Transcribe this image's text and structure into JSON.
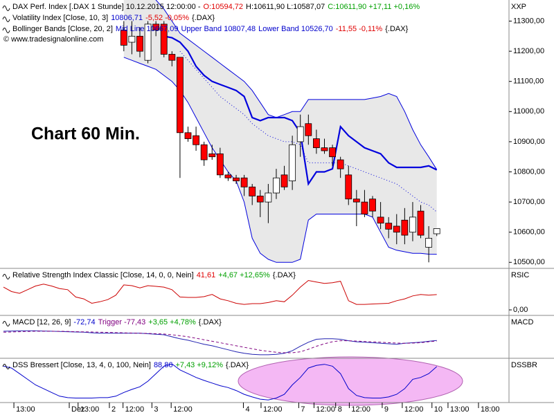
{
  "chart_data": [
    {
      "type": "candlestick",
      "legend_rows": [
        [
          {
            "text": "DAX Perf. Index [.DAX 1 Stunde] 10.12.2015 12:00:00 -",
            "color": "#000000"
          },
          {
            "text": "O:10594,72",
            "color": "#e00000"
          },
          {
            "text": "H:10611,90 L:10587,07",
            "color": "#000000"
          },
          {
            "text": "C:10611,90 +17,11 +0,16%",
            "color": "#00a000"
          }
        ],
        [
          {
            "text": "Volatility Index [Close, 10, 3]",
            "color": "#000000"
          },
          {
            "text": "10806,71",
            "color": "#0000cc"
          },
          {
            "text": "-5,52 -0,05%",
            "color": "#e00000"
          },
          {
            "text": "{.DAX}",
            "color": "#000000"
          }
        ],
        [
          {
            "text": "Bollinger Bands [Close, 20, 2]",
            "color": "#000000"
          },
          {
            "text": "Mid Line 10667,09",
            "color": "#0000cc"
          },
          {
            "text": "Upper Band 10807,48",
            "color": "#0000cc"
          },
          {
            "text": "Lower Band 10526,70",
            "color": "#0000cc"
          },
          {
            "text": "-11,55 -0,11%",
            "color": "#e00000"
          },
          {
            "text": "{.DAX}",
            "color": "#000000"
          }
        ]
      ],
      "credit": "© www.tradesignalonline.com",
      "annotation": "Chart 60 Min.",
      "axis_label": "XXP",
      "up_color": "#ffffff",
      "down_color": "#ff0000",
      "band_fill": "#e8e8e8",
      "x": [
        15,
        16,
        17,
        18,
        19,
        20,
        21,
        22,
        23,
        24,
        25,
        26,
        27,
        28,
        29,
        30,
        31,
        32,
        33,
        34,
        35,
        36,
        37,
        38,
        39,
        40,
        41,
        42,
        43,
        44,
        45,
        46,
        47,
        48,
        49,
        50,
        51,
        52,
        53,
        54
      ],
      "open": [
        11270,
        11230,
        11250,
        11170,
        11290,
        11290,
        11190,
        11180,
        10930,
        10920,
        10890,
        10860,
        10860,
        10790,
        10780,
        10780,
        10750,
        10720,
        10700,
        10730,
        10790,
        10770,
        10900,
        10960,
        10910,
        10880,
        10880,
        10840,
        10790,
        10710,
        10700,
        10710,
        10650,
        10630,
        10620,
        10640,
        10600,
        10670,
        10550,
        10594.72
      ],
      "high": [
        11300,
        11300,
        11280,
        11300,
        11300,
        11300,
        11200,
        11180,
        10950,
        10950,
        10900,
        10890,
        10880,
        10800,
        10790,
        10790,
        10760,
        10740,
        10760,
        10810,
        10820,
        10920,
        10990,
        10990,
        10940,
        10910,
        10890,
        10850,
        10820,
        10740,
        10740,
        10720,
        10700,
        10650,
        10660,
        10680,
        10700,
        10690,
        10620,
        10611.9
      ],
      "low": [
        11200,
        11190,
        11180,
        11160,
        11250,
        11180,
        11150,
        10780,
        10900,
        10870,
        10820,
        10840,
        10780,
        10770,
        10760,
        10720,
        10690,
        10650,
        10630,
        10710,
        10740,
        10740,
        10850,
        10890,
        10860,
        10860,
        10820,
        10780,
        10690,
        10620,
        10650,
        10650,
        10610,
        10580,
        10560,
        10560,
        10570,
        10580,
        10500,
        10587.07
      ],
      "close": [
        11220,
        11250,
        11200,
        11290,
        11270,
        11190,
        11170,
        10930,
        10910,
        10890,
        10840,
        10850,
        10790,
        10780,
        10770,
        10750,
        10720,
        10700,
        10730,
        10780,
        10750,
        10890,
        10950,
        10920,
        10880,
        10870,
        10850,
        10810,
        10710,
        10700,
        10660,
        10670,
        10630,
        10610,
        10600,
        10590,
        10650,
        10590,
        10580,
        10611.9
      ],
      "series": [
        {
          "color": "#0000dd",
          "width": 2.2,
          "values": [
            null,
            null,
            null,
            null,
            null,
            11250,
            11245,
            11230,
            11200,
            11150,
            11120,
            11100,
            11090,
            11080,
            11070,
            11050,
            10980,
            10970,
            10980,
            10980,
            10980,
            10970,
            10930,
            10760,
            10800,
            10800,
            10810,
            10950,
            10920,
            10900,
            10880,
            10870,
            10860,
            10830,
            10815,
            10815,
            10815,
            10815,
            10820,
            10806.71
          ]
        },
        {
          "color": "#0000dd",
          "width": 1,
          "dash": "1 3",
          "values": [
            null,
            null,
            null,
            null,
            null,
            null,
            null,
            11200,
            11170,
            11140,
            11110,
            11080,
            11050,
            11030,
            11010,
            10990,
            10960,
            10940,
            10920,
            10910,
            10900,
            10900,
            10890,
            10830,
            10830,
            10830,
            10830,
            10830,
            10820,
            10810,
            10800,
            10790,
            10780,
            10770,
            10760,
            10740,
            10720,
            10700,
            10690,
            10667.09
          ]
        },
        {
          "color": "#0000dd",
          "width": 1,
          "values": [
            11420,
            11410,
            11400,
            11390,
            11370,
            11340,
            11300,
            11260,
            11240,
            11220,
            11200,
            11180,
            11160,
            11140,
            11120,
            11100,
            11070,
            11030,
            10990,
            10980,
            10990,
            11000,
            11000,
            11040,
            11040,
            11040,
            11040,
            11040,
            11040,
            11040,
            11040,
            11045,
            11050,
            11060,
            11050,
            11000,
            10940,
            10890,
            10850,
            10807.48
          ]
        },
        {
          "color": "#0000dd",
          "width": 1,
          "values": [
            11180,
            11170,
            11160,
            11150,
            11140,
            11120,
            11100,
            11070,
            11030,
            10980,
            10930,
            10880,
            10840,
            10800,
            10770,
            10700,
            10580,
            10530,
            10510,
            10500,
            10500,
            10500,
            10510,
            10640,
            10660,
            10660,
            10660,
            10660,
            10660,
            10660,
            10660,
            10650,
            10600,
            10550,
            10540,
            10535,
            10530,
            10530,
            10527,
            10526.7
          ]
        }
      ],
      "ylim": [
        10480,
        11370
      ],
      "yticks": [
        {
          "value": 10500,
          "label": "10500,00"
        },
        {
          "value": 10600,
          "label": "10600,00"
        },
        {
          "value": 10700,
          "label": "10700,00"
        },
        {
          "value": 10800,
          "label": "10800,00"
        },
        {
          "value": 10900,
          "label": "10900,00"
        },
        {
          "value": 11000,
          "label": "11000,00"
        },
        {
          "value": 11100,
          "label": "11100,00"
        },
        {
          "value": 11200,
          "label": "11200,00"
        },
        {
          "value": 11300,
          "label": "11300,00"
        }
      ]
    },
    {
      "type": "line",
      "legend_rows": [
        [
          {
            "text": "Relative Strength Index Classic [Close, 14, 0, 0, Nein]",
            "color": "#000000"
          },
          {
            "text": "41,61",
            "color": "#e00000"
          },
          {
            "text": "+4,67 +12,65%",
            "color": "#00a000"
          },
          {
            "text": "{.DAX}",
            "color": "#000000"
          }
        ]
      ],
      "axis_label": "RSIC",
      "x": [
        0,
        1,
        2,
        3,
        4,
        5,
        6,
        7,
        8,
        9,
        10,
        11,
        12,
        13,
        14,
        15,
        16,
        17,
        18,
        19,
        20,
        21,
        22,
        23,
        24,
        25,
        26,
        27,
        28,
        29,
        30,
        31,
        32,
        33,
        34,
        35,
        36,
        37,
        38,
        39,
        40,
        41,
        42,
        43,
        44,
        45,
        46,
        47,
        48,
        49,
        50,
        51,
        52,
        53,
        54
      ],
      "series": [
        {
          "color": "#cc0000",
          "width": 1,
          "values": [
            62,
            50,
            45,
            55,
            65,
            70,
            65,
            58,
            55,
            35,
            30,
            18,
            22,
            28,
            40,
            68,
            66,
            60,
            66,
            64,
            62,
            55,
            35,
            34,
            34,
            36,
            42,
            30,
            25,
            18,
            15,
            17,
            17,
            20,
            25,
            22,
            40,
            62,
            80,
            76,
            72,
            74,
            78,
            25,
            15,
            15,
            16,
            17,
            18,
            25,
            30,
            38,
            42,
            40,
            41.61
          ]
        }
      ],
      "ylim": [
        -15,
        113
      ],
      "yticks": [
        {
          "value": 0,
          "label": "0,00"
        }
      ]
    },
    {
      "type": "line",
      "legend_rows": [
        [
          {
            "text": "MACD [12, 26, 9]",
            "color": "#000000"
          },
          {
            "text": "-72,74",
            "color": "#0000cc"
          },
          {
            "text": "Trigger -77,43",
            "color": "#800080"
          },
          {
            "text": "+3,65 +4,78%",
            "color": "#00a000"
          },
          {
            "text": "{.DAX}",
            "color": "#000000"
          }
        ]
      ],
      "axis_label": "MACD",
      "x": [
        0,
        1,
        2,
        3,
        4,
        5,
        6,
        7,
        8,
        9,
        10,
        11,
        12,
        13,
        14,
        15,
        16,
        17,
        18,
        19,
        20,
        21,
        22,
        23,
        24,
        25,
        26,
        27,
        28,
        29,
        30,
        31,
        32,
        33,
        34,
        35,
        36,
        37,
        38,
        39,
        40,
        41,
        42,
        43,
        44,
        45,
        46,
        47,
        48,
        49,
        50,
        51,
        52,
        53,
        54
      ],
      "series": [
        {
          "color": "#2020b0",
          "width": 1,
          "values": [
            20,
            22,
            24,
            25,
            25,
            22,
            20,
            18,
            15,
            12,
            10,
            5,
            0,
            0,
            0,
            0,
            0,
            0,
            -5,
            -10,
            -15,
            -35,
            -55,
            -70,
            -90,
            -110,
            -125,
            -145,
            -165,
            -185,
            -200,
            -210,
            -215,
            -215,
            -210,
            -200,
            -175,
            -130,
            -90,
            -60,
            -55,
            -55,
            -60,
            -75,
            -85,
            -90,
            -95,
            -100,
            -105,
            -110,
            -100,
            -95,
            -90,
            -80,
            -72.74
          ]
        },
        {
          "color": "#800080",
          "width": 1,
          "dash": "4 3",
          "values": [
            10,
            12,
            15,
            18,
            20,
            20,
            20,
            19,
            18,
            16,
            14,
            12,
            10,
            8,
            6,
            4,
            2,
            0,
            -2,
            -5,
            -8,
            -15,
            -25,
            -35,
            -50,
            -65,
            -80,
            -95,
            -110,
            -125,
            -140,
            -155,
            -170,
            -180,
            -190,
            -195,
            -195,
            -185,
            -160,
            -130,
            -105,
            -85,
            -75,
            -75,
            -78,
            -82,
            -86,
            -90,
            -94,
            -98,
            -100,
            -98,
            -95,
            -85,
            -77.43
          ]
        }
      ],
      "ylim": [
        -250,
        178
      ]
    },
    {
      "type": "line",
      "legend_rows": [
        [
          {
            "text": "DSS Bressert [Close, 13, 4, 0, 100, Nein]",
            "color": "#000000"
          },
          {
            "text": "88,86",
            "color": "#0000cc"
          },
          {
            "text": "+7,43 +9,12%",
            "color": "#00a000"
          },
          {
            "text": "{.DAX}",
            "color": "#000000"
          }
        ]
      ],
      "axis_label": "DSSBR",
      "x": [
        0,
        1,
        2,
        3,
        4,
        5,
        6,
        7,
        8,
        9,
        10,
        11,
        12,
        13,
        14,
        15,
        16,
        17,
        18,
        19,
        20,
        21,
        22,
        23,
        24,
        25,
        26,
        27,
        28,
        29,
        30,
        31,
        32,
        33,
        34,
        35,
        36,
        37,
        38,
        39,
        40,
        41,
        42,
        43,
        44,
        45,
        46,
        47,
        48,
        49,
        50,
        51,
        52,
        53,
        54
      ],
      "series": [
        {
          "color": "#0000cc",
          "width": 1,
          "values": [
            90,
            85,
            70,
            55,
            40,
            30,
            20,
            10,
            6,
            5,
            5,
            5,
            6,
            6,
            10,
            20,
            28,
            35,
            50,
            70,
            90,
            96,
            80,
            70,
            60,
            52,
            45,
            38,
            33,
            25,
            15,
            8,
            2,
            0,
            5,
            15,
            40,
            60,
            85,
            92,
            95,
            90,
            70,
            30,
            12,
            6,
            5,
            5,
            8,
            15,
            30,
            55,
            60,
            70,
            88.86
          ]
        }
      ],
      "ylim": [
        -7,
        111
      ],
      "xlim": [
        0,
        63
      ],
      "xticks": [
        {
          "value": 1.3,
          "label": "13:00"
        },
        {
          "value": 8.2,
          "label": "Dez"
        },
        {
          "value": 9.3,
          "label": "13:00"
        },
        {
          "value": 13.2,
          "label": "2"
        },
        {
          "value": 14.9,
          "label": "12:00"
        },
        {
          "value": 18.5,
          "label": "3"
        },
        {
          "value": 20.9,
          "label": "12:00"
        },
        {
          "value": 29.9,
          "label": "4"
        },
        {
          "value": 32.1,
          "label": "12:00"
        },
        {
          "value": 36.8,
          "label": "7"
        },
        {
          "value": 38.7,
          "label": "12:00"
        },
        {
          "value": 41.4,
          "label": "8"
        },
        {
          "value": 43.1,
          "label": "12:00"
        },
        {
          "value": 47.2,
          "label": "9"
        },
        {
          "value": 49.7,
          "label": "12:00"
        },
        {
          "value": 53.4,
          "label": "10"
        },
        {
          "value": 55.4,
          "label": "13:00"
        },
        {
          "value": 59.2,
          "label": "18:00"
        }
      ]
    }
  ]
}
